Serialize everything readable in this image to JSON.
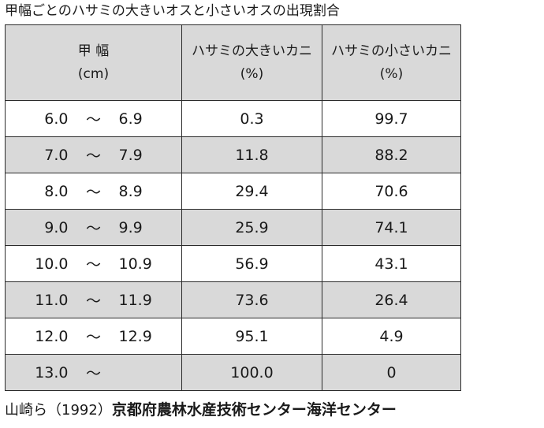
{
  "title": "甲幅ごとのハサミの大きいオスと小さいオスの出現割合",
  "table": {
    "headers": [
      {
        "line1": "甲 幅",
        "line2": "(cm)"
      },
      {
        "line1": "ハサミの大きいカニ",
        "line2": "(%)"
      },
      {
        "line1": "ハサミの小さいカニ",
        "line2": "(%)"
      }
    ],
    "rows": [
      {
        "lo": "6.0",
        "tilde": "～",
        "hi": "6.9",
        "large": "0.3",
        "small": "99.7"
      },
      {
        "lo": "7.0",
        "tilde": "～",
        "hi": "7.9",
        "large": "11.8",
        "small": "88.2"
      },
      {
        "lo": "8.0",
        "tilde": "～",
        "hi": "8.9",
        "large": "29.4",
        "small": "70.6"
      },
      {
        "lo": "9.0",
        "tilde": "～",
        "hi": "9.9",
        "large": "25.9",
        "small": "74.1"
      },
      {
        "lo": "10.0",
        "tilde": "～",
        "hi": "10.9",
        "large": "56.9",
        "small": "43.1"
      },
      {
        "lo": "11.0",
        "tilde": "～",
        "hi": "11.9",
        "large": "73.6",
        "small": "26.4"
      },
      {
        "lo": "12.0",
        "tilde": "～",
        "hi": "12.9",
        "large": "95.1",
        "small": "4.9"
      },
      {
        "lo": "13.0",
        "tilde": "～",
        "hi": "",
        "large": "100.0",
        "small": "0"
      }
    ]
  },
  "source": {
    "citation": "山崎ら（1992）",
    "organization": "京都府農林水産技術センター海洋センター"
  },
  "colors": {
    "header_fill": "#d9d9d9",
    "shaded_row_fill": "#d9d9d9",
    "border": "#2b2b2b",
    "text": "#1a1a1a"
  }
}
